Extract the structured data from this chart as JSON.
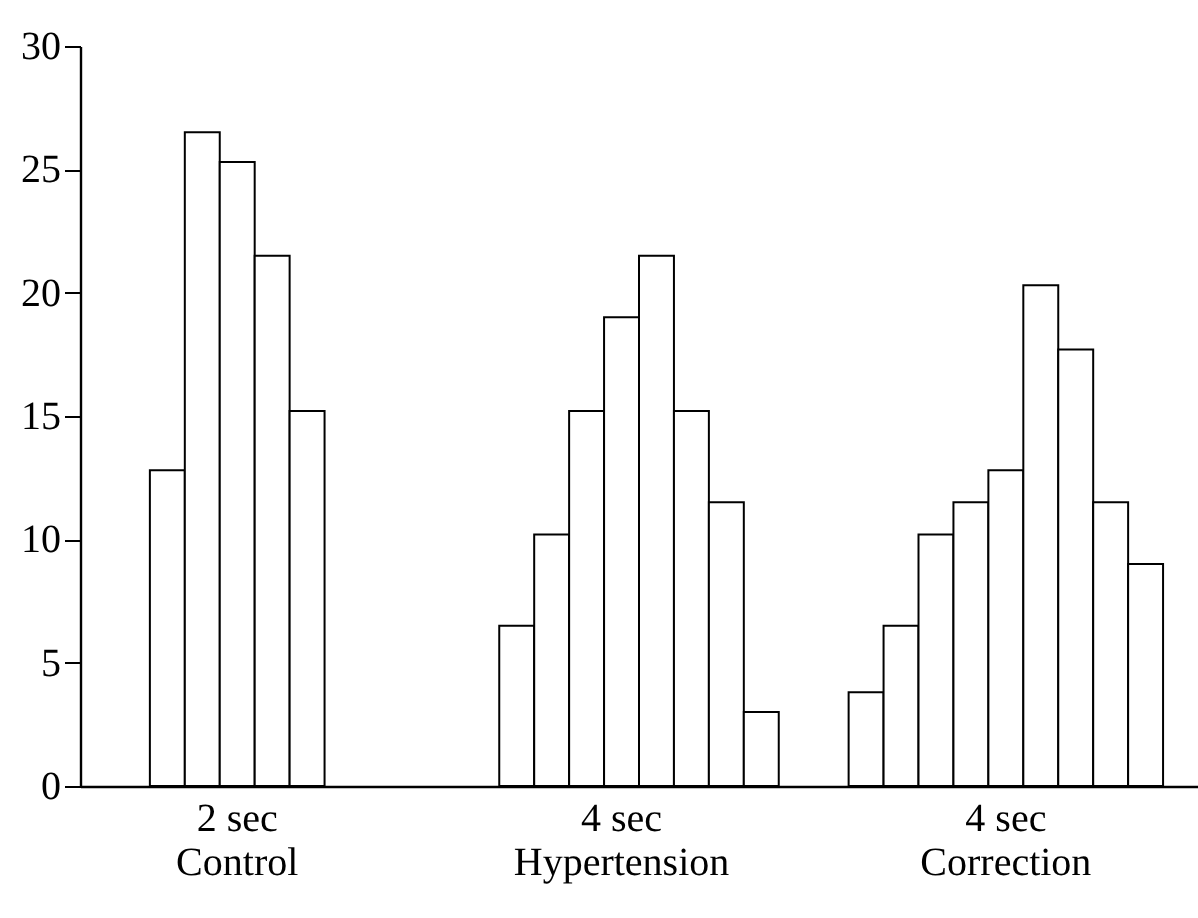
{
  "chart_data": {
    "type": "bar",
    "categories": [
      null,
      null,
      null,
      null,
      "2 sec\nControl",
      null,
      null,
      null,
      null,
      null,
      null,
      null,
      null,
      null,
      null,
      "4 sec\nHypertension",
      null,
      null,
      null,
      null,
      null,
      null,
      null,
      null,
      null,
      null,
      "4 sec\nCorrection",
      null,
      null,
      null,
      null,
      null
    ],
    "values": [
      null,
      null,
      12.8,
      26.5,
      25.3,
      21.5,
      15.2,
      null,
      null,
      null,
      null,
      null,
      6.5,
      10.2,
      15.2,
      19.0,
      21.5,
      15.2,
      11.5,
      3.0,
      null,
      null,
      3.8,
      6.5,
      10.2,
      11.5,
      12.8,
      20.3,
      17.7,
      11.5,
      9.0,
      null
    ],
    "color": "#ffffff",
    "ylim": [
      0,
      30
    ],
    "yticks": [
      0,
      5,
      10,
      15,
      20,
      25,
      30
    ],
    "grid": false
  }
}
